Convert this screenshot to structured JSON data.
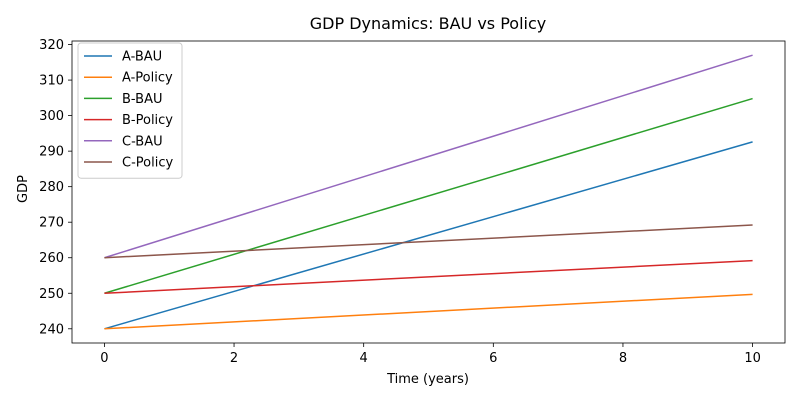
{
  "chart_data": {
    "type": "line",
    "title": "GDP Dynamics: BAU vs Policy",
    "xlabel": "Time (years)",
    "ylabel": "GDP",
    "xlim": [
      -0.5,
      10.5
    ],
    "ylim": [
      236,
      321
    ],
    "xticks": [
      0,
      2,
      4,
      6,
      8,
      10
    ],
    "yticks": [
      240,
      250,
      260,
      270,
      280,
      290,
      300,
      310,
      320
    ],
    "grid": false,
    "legend_position": "top-left",
    "series": [
      {
        "name": "A-BAU",
        "color": "#1f77b4",
        "x": [
          0,
          10
        ],
        "y": [
          240,
          292.6
        ]
      },
      {
        "name": "A-Policy",
        "color": "#ff7f0e",
        "x": [
          0,
          10
        ],
        "y": [
          240,
          249.7
        ]
      },
      {
        "name": "B-BAU",
        "color": "#2ca02c",
        "x": [
          0,
          10
        ],
        "y": [
          250,
          304.8
        ]
      },
      {
        "name": "B-Policy",
        "color": "#d62728",
        "x": [
          0,
          10
        ],
        "y": [
          250,
          259.2
        ]
      },
      {
        "name": "C-BAU",
        "color": "#9467bd",
        "x": [
          0,
          10
        ],
        "y": [
          260,
          317.0
        ]
      },
      {
        "name": "C-Policy",
        "color": "#8c564b",
        "x": [
          0,
          10
        ],
        "y": [
          260,
          269.2
        ]
      }
    ]
  }
}
